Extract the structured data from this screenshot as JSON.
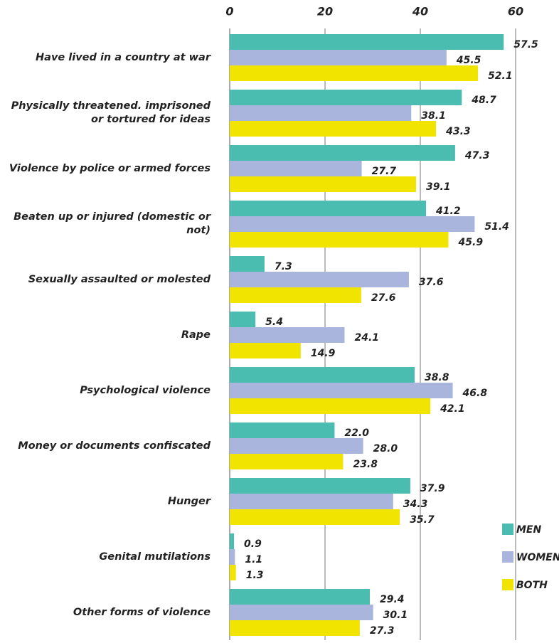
{
  "chart_data": {
    "type": "bar",
    "orientation": "horizontal",
    "categories": [
      "Have lived in a country at war",
      "Physically threatened. imprisoned or tortured for ideas",
      "Violence by police or armed forces",
      "Beaten up or injured (domestic or not)",
      "Sexually assaulted or molested",
      "Rape",
      "Psychological violence",
      "Money or documents confiscated",
      "Hunger",
      "Genital mutilations",
      "Other forms of violence"
    ],
    "series": [
      {
        "name": "MEN",
        "color": "#4bbcb0",
        "values": [
          57.5,
          48.7,
          47.3,
          41.2,
          7.3,
          5.4,
          38.8,
          22,
          37.9,
          0.9,
          29.4
        ],
        "value_labels": [
          "57.5",
          "48.7",
          "47.3",
          "41.2",
          "7.3",
          "5.4",
          "38.8",
          "22.0",
          "37.9",
          "0.9",
          "29.4"
        ]
      },
      {
        "name": "WOMEN",
        "color": "#a9b5dc",
        "values": [
          45.5,
          38.1,
          27.7,
          51.4,
          37.6,
          24.1,
          46.8,
          28,
          34.3,
          1.1,
          30.1
        ],
        "value_labels": [
          "45.5",
          "38.1",
          "27.7",
          "51.4",
          "37.6",
          "24.1",
          "46.8",
          "28.0",
          "34.3",
          "1.1",
          "30.1"
        ]
      },
      {
        "name": "BOTH",
        "color": "#f0e400",
        "values": [
          52.1,
          43.3,
          39.1,
          45.9,
          27.6,
          14.9,
          42.1,
          23.8,
          35.7,
          1.3,
          27.3
        ],
        "value_labels": [
          "52.1",
          "43.3",
          "39.1",
          "45.9",
          "27.6",
          "14.9",
          "42.1",
          "23.8",
          "35.7",
          "1.3",
          "27.3"
        ]
      }
    ],
    "xlim": [
      0,
      60
    ],
    "xticks": [
      0,
      20,
      40,
      60
    ],
    "grid": true,
    "legend": "lower right"
  }
}
